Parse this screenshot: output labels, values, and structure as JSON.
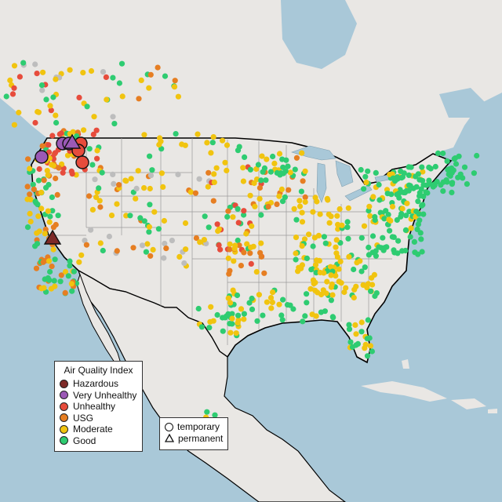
{
  "legend": {
    "title": "Air Quality Index",
    "categories": [
      {
        "label": "Hazardous",
        "color": "#7e2a28"
      },
      {
        "label": "Very Unhealthy",
        "color": "#9b59b6"
      },
      {
        "label": "Unhealthy",
        "color": "#e74c3c"
      },
      {
        "label": "USG",
        "color": "#e67e22"
      },
      {
        "label": "Moderate",
        "color": "#f1c40f"
      },
      {
        "label": "Good",
        "color": "#2ecc71"
      }
    ],
    "no_data_color": "#bdbdbd"
  },
  "monitor_legend": {
    "types": [
      {
        "label": "temporary",
        "shape": "circle"
      },
      {
        "label": "permanent",
        "shape": "triangle"
      }
    ]
  },
  "map": {
    "land_color": "#e9e7e4",
    "water_color": "#a9c8d8",
    "border_color": "#000000",
    "state_line_color": "#9a9a9a"
  }
}
